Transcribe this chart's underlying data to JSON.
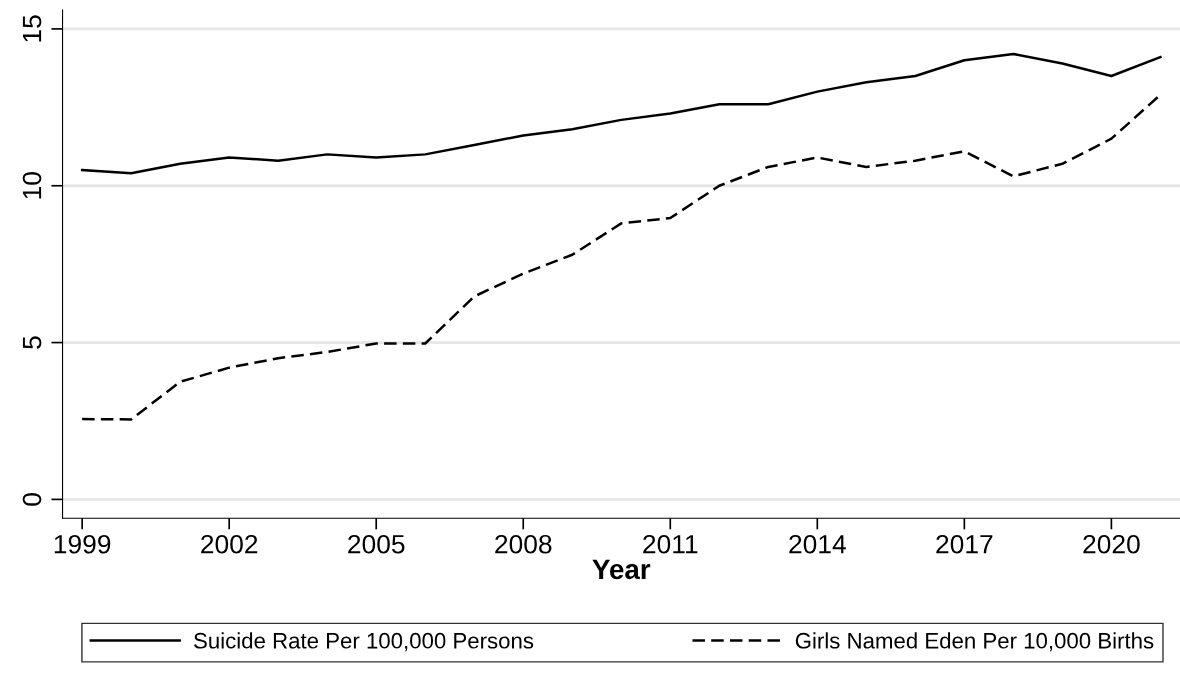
{
  "chart_data": {
    "type": "line",
    "xlabel": "Year",
    "x": [
      1999,
      2000,
      2001,
      2002,
      2003,
      2004,
      2005,
      2006,
      2007,
      2008,
      2009,
      2010,
      2011,
      2012,
      2013,
      2014,
      2015,
      2016,
      2017,
      2018,
      2019,
      2020,
      2021
    ],
    "series": [
      {
        "name": "Suicide Rate Per 100,000 Persons",
        "color": "#000000",
        "line_style": "solid",
        "values": [
          10.5,
          10.4,
          10.7,
          10.9,
          10.8,
          11.0,
          10.9,
          11.0,
          11.3,
          11.6,
          11.8,
          12.1,
          12.3,
          12.6,
          12.6,
          13.0,
          13.3,
          13.5,
          14.0,
          14.2,
          13.9,
          13.5,
          14.1
        ]
      },
      {
        "name": "Girls Named Eden Per 10,000 Births",
        "color": "#000000",
        "line_style": "dashed",
        "values": [
          2.56,
          2.55,
          3.75,
          4.2,
          4.5,
          4.7,
          4.97,
          4.97,
          6.47,
          7.2,
          7.8,
          8.8,
          8.97,
          10.0,
          10.6,
          10.9,
          10.6,
          10.8,
          11.1,
          10.3,
          10.7,
          11.5,
          12.9
        ]
      }
    ],
    "xlim": [
      1998.6,
      2021.4
    ],
    "ylim": [
      -0.6,
      15.6
    ],
    "xticks": [
      1999,
      2002,
      2005,
      2008,
      2011,
      2014,
      2017,
      2020
    ],
    "yticks": [
      0,
      5,
      10,
      15
    ],
    "grid": "y",
    "legend": "bottom",
    "marker": "none"
  }
}
